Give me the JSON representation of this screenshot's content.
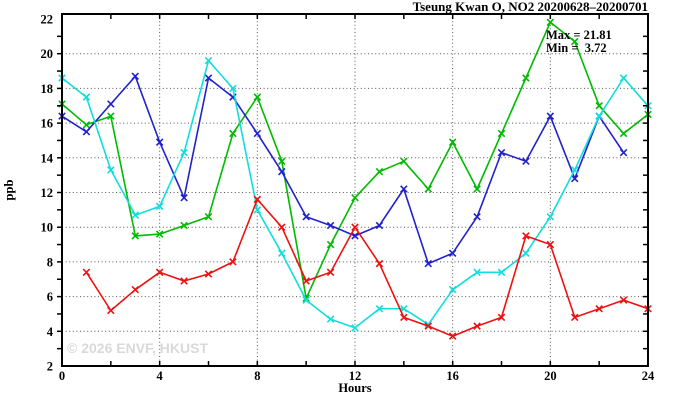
{
  "title": "Tseung Kwan O, NO2 20200628–20200701",
  "annotation": {
    "max_label": "Max = 21.81",
    "min_label": "Min =  3.72"
  },
  "watermark": "© 2026 ENVF, HKUST",
  "axes": {
    "ylabel": "ppb",
    "xlabel": "Hours"
  },
  "colors": {
    "green": "#00bb00",
    "blue": "#2222cc",
    "cyan": "#11dddd",
    "red": "#ee1111",
    "grid": "#555555",
    "frame": "#000000"
  },
  "chart_data": {
    "type": "line",
    "title": "Tseung Kwan O, NO2 20200628–20200701",
    "xlabel": "Hours",
    "ylabel": "ppb",
    "xlim": [
      0,
      24
    ],
    "ylim": [
      2,
      22
    ],
    "x_major_ticks": [
      0,
      4,
      8,
      12,
      16,
      20,
      24
    ],
    "y_major_ticks": [
      2,
      4,
      6,
      8,
      10,
      12,
      14,
      16,
      18,
      20,
      22
    ],
    "grid": true,
    "legend_position": "none",
    "stat_max": 21.81,
    "stat_min": 3.72,
    "marker": "x",
    "series": [
      {
        "name": "green-series",
        "color": "#00bb00",
        "points": [
          [
            0,
            17.1
          ],
          [
            1,
            15.9
          ],
          [
            2,
            16.4
          ],
          [
            3,
            9.5
          ],
          [
            4,
            9.6
          ],
          [
            5,
            10.1
          ],
          [
            6,
            10.6
          ],
          [
            7,
            15.4
          ],
          [
            8,
            17.5
          ],
          [
            9,
            13.8
          ],
          [
            10,
            5.9
          ],
          [
            11,
            9.0
          ],
          [
            12,
            11.7
          ],
          [
            13,
            13.2
          ],
          [
            14,
            13.8
          ],
          [
            15,
            12.2
          ],
          [
            16,
            14.9
          ],
          [
            17,
            12.2
          ],
          [
            18,
            15.4
          ],
          [
            19,
            18.6
          ],
          [
            20,
            21.81
          ],
          [
            21,
            20.7
          ],
          [
            22,
            17.0
          ],
          [
            23,
            15.4
          ],
          [
            24,
            16.5
          ]
        ]
      },
      {
        "name": "blue-series",
        "color": "#2222cc",
        "points": [
          [
            0,
            16.4
          ],
          [
            1,
            15.5
          ],
          [
            2,
            17.1
          ],
          [
            3,
            18.7
          ],
          [
            4,
            14.9
          ],
          [
            5,
            11.7
          ],
          [
            6,
            18.6
          ],
          [
            7,
            17.5
          ],
          [
            8,
            15.4
          ],
          [
            9,
            13.2
          ],
          [
            10,
            10.6
          ],
          [
            11,
            10.1
          ],
          [
            12,
            9.5
          ],
          [
            13,
            10.1
          ],
          [
            14,
            12.2
          ],
          [
            15,
            7.9
          ],
          [
            16,
            8.5
          ],
          [
            17,
            10.6
          ],
          [
            18,
            14.3
          ],
          [
            19,
            13.8
          ],
          [
            20,
            16.4
          ],
          [
            21,
            12.8
          ],
          [
            22,
            16.4
          ],
          [
            23,
            14.3
          ]
        ]
      },
      {
        "name": "cyan-series",
        "color": "#11dddd",
        "points": [
          [
            0,
            18.6
          ],
          [
            1,
            17.5
          ],
          [
            2,
            13.3
          ],
          [
            3,
            10.7
          ],
          [
            4,
            11.2
          ],
          [
            5,
            14.3
          ],
          [
            6,
            19.6
          ],
          [
            7,
            18.0
          ],
          [
            8,
            11.0
          ],
          [
            9,
            8.5
          ],
          [
            10,
            5.8
          ],
          [
            11,
            4.7
          ],
          [
            12,
            4.2
          ],
          [
            13,
            5.3
          ],
          [
            14,
            5.3
          ],
          [
            15,
            4.4
          ],
          [
            16,
            6.4
          ],
          [
            17,
            7.4
          ],
          [
            18,
            7.4
          ],
          [
            19,
            8.5
          ],
          [
            20,
            10.6
          ],
          [
            21,
            13.3
          ],
          [
            22,
            16.4
          ],
          [
            23,
            18.6
          ],
          [
            24,
            17.0
          ]
        ]
      },
      {
        "name": "red-series",
        "color": "#ee1111",
        "points": [
          [
            1,
            7.4
          ],
          [
            2,
            5.2
          ],
          [
            3,
            6.4
          ],
          [
            4,
            7.4
          ],
          [
            5,
            6.9
          ],
          [
            6,
            7.3
          ],
          [
            7,
            8.0
          ],
          [
            8,
            11.6
          ],
          [
            9,
            10.0
          ],
          [
            10,
            6.9
          ],
          [
            11,
            7.4
          ],
          [
            12,
            10.0
          ],
          [
            13,
            7.9
          ],
          [
            14,
            4.8
          ],
          [
            15,
            4.3
          ],
          [
            16,
            3.72
          ],
          [
            17,
            4.3
          ],
          [
            18,
            4.8
          ],
          [
            19,
            9.5
          ],
          [
            20,
            9.0
          ],
          [
            21,
            4.8
          ],
          [
            22,
            5.3
          ],
          [
            23,
            5.8
          ],
          [
            24,
            5.3
          ]
        ]
      }
    ]
  }
}
